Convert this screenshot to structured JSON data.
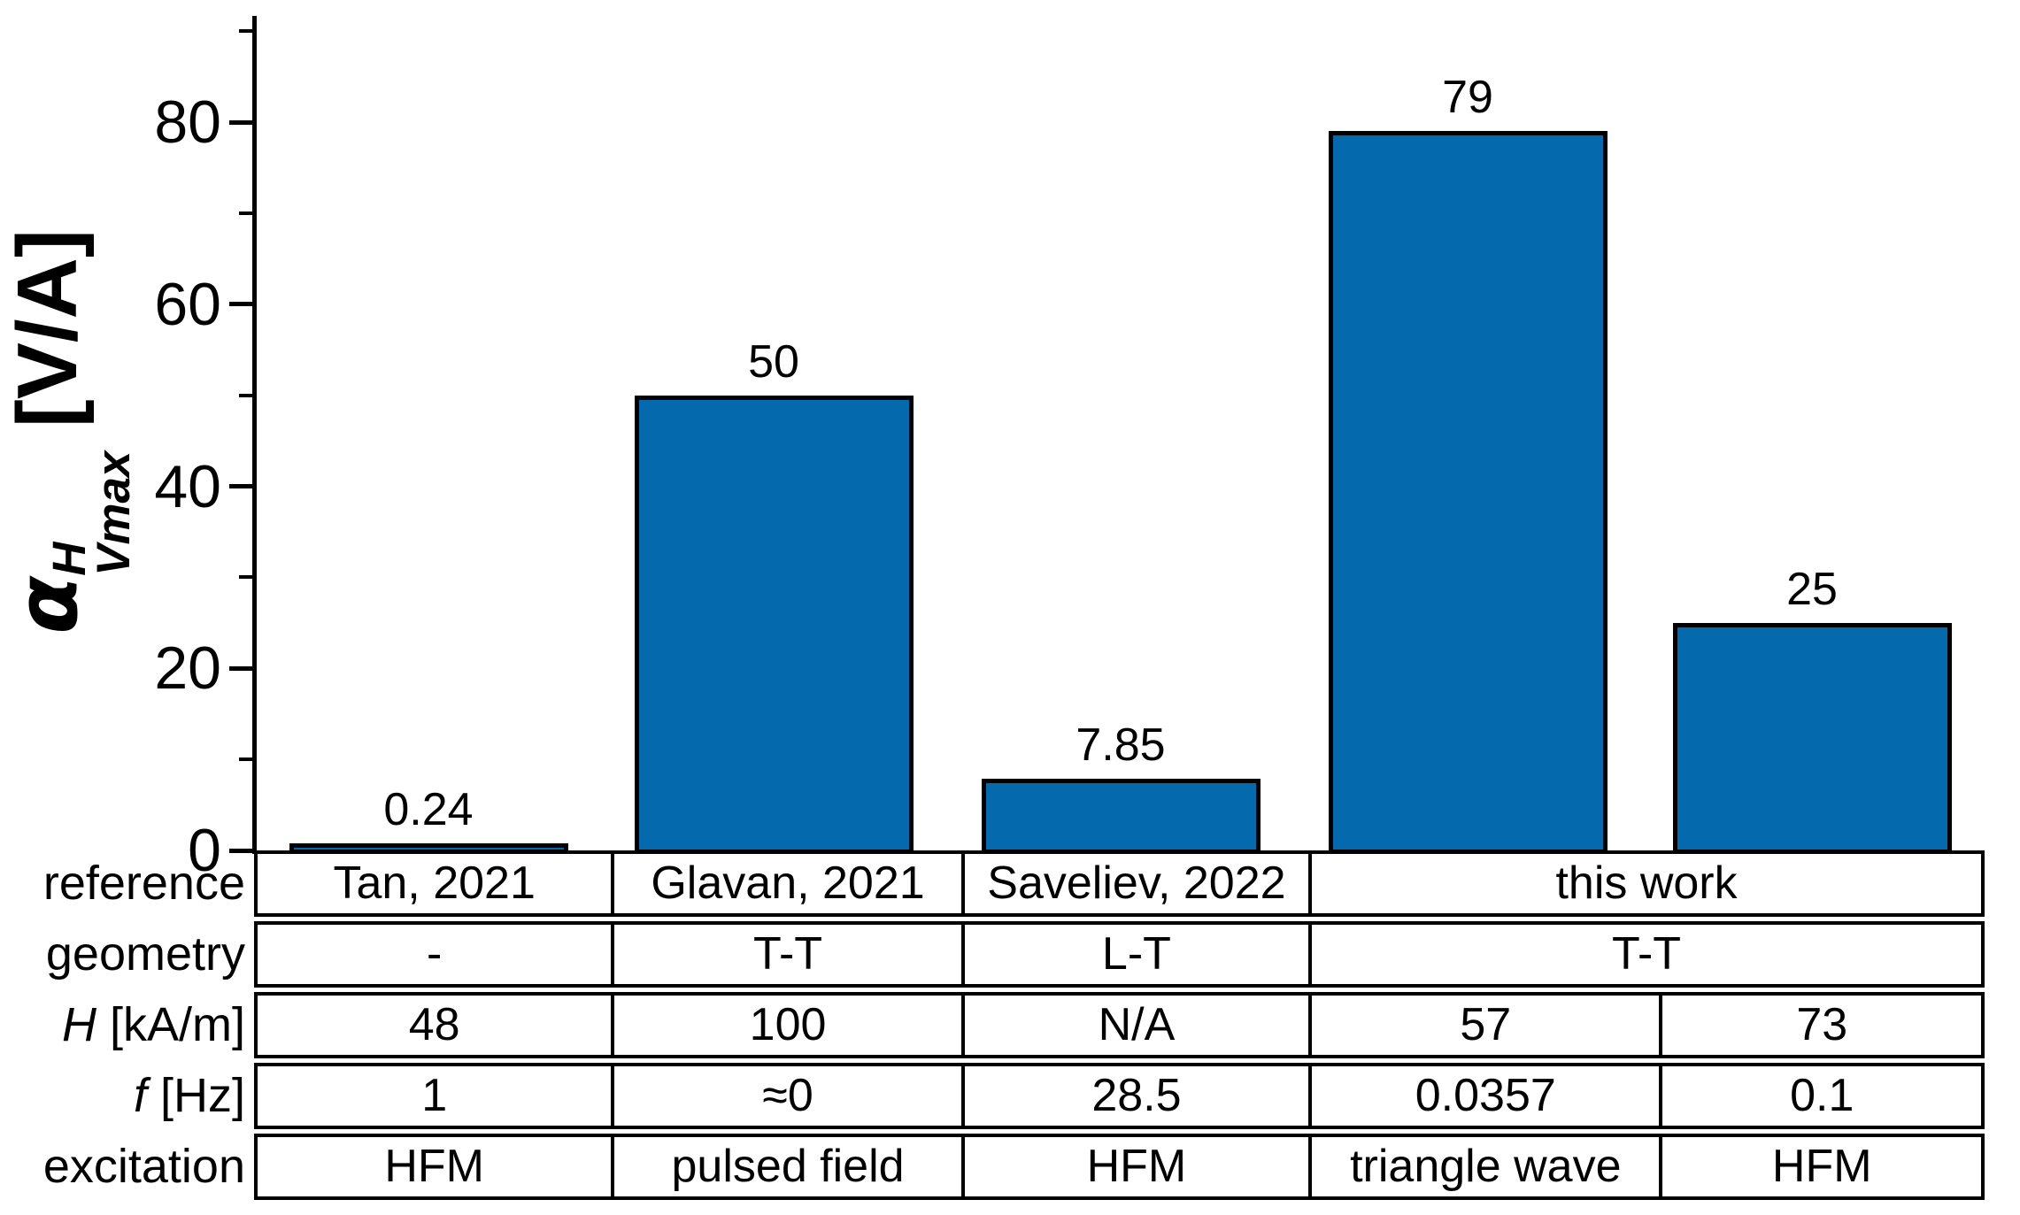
{
  "figure": {
    "background": "#ffffff",
    "axis_color": "#000000",
    "bar_color": "#0569ae",
    "bar_border_color": "#000000"
  },
  "chart_data": {
    "type": "bar",
    "title": "",
    "xlabel": "",
    "ylabel_text": "α^H_Vmax [V/A]",
    "ylabel": {
      "alpha": "α",
      "sup": "H",
      "sub": "Vmax",
      "units": " [V/A]"
    },
    "ylim": [
      0,
      91.5
    ],
    "yticks": [
      0,
      20,
      40,
      60,
      80
    ],
    "minor_yticks": [
      10,
      30,
      50,
      70,
      90
    ],
    "grid": false,
    "legend": "none",
    "categories": [
      "Tan, 2021",
      "Glavan, 2021",
      "Saveliev, 2022",
      "this work",
      "this work"
    ],
    "values": [
      0.24,
      50,
      7.85,
      79,
      25
    ],
    "bar_labels": [
      "0.24",
      "50",
      "7.85",
      "79",
      "25"
    ]
  },
  "table": {
    "row_headers": [
      {
        "italic": "",
        "text": "reference"
      },
      {
        "italic": "",
        "text": "geometry"
      },
      {
        "italic": "H",
        "text": " [kA/m]"
      },
      {
        "italic": "f",
        "text": " [Hz]"
      },
      {
        "italic": "",
        "text": "excitation"
      }
    ],
    "rows": [
      {
        "name": "reference",
        "cells": [
          {
            "text": "Tan, 2021",
            "span": 1
          },
          {
            "text": "Glavan, 2021",
            "span": 1
          },
          {
            "text": "Saveliev, 2022",
            "span": 1
          },
          {
            "text": "this work",
            "span": 2
          }
        ]
      },
      {
        "name": "geometry",
        "cells": [
          {
            "text": "-",
            "span": 1
          },
          {
            "text": "T-T",
            "span": 1
          },
          {
            "text": "L-T",
            "span": 1
          },
          {
            "text": "T-T",
            "span": 2
          }
        ]
      },
      {
        "name": "H-kA-m",
        "cells": [
          {
            "text": "48",
            "span": 1
          },
          {
            "text": "100",
            "span": 1
          },
          {
            "text": "N/A",
            "span": 1
          },
          {
            "text": "57",
            "span": 1
          },
          {
            "text": "73",
            "span": 1
          }
        ]
      },
      {
        "name": "f-Hz",
        "cells": [
          {
            "text": "1",
            "span": 1
          },
          {
            "text": "≈0",
            "span": 1
          },
          {
            "text": "28.5",
            "span": 1
          },
          {
            "text": "0.0357",
            "span": 1
          },
          {
            "text": "0.1",
            "span": 1
          }
        ]
      },
      {
        "name": "excitation",
        "cells": [
          {
            "text": "HFM",
            "span": 1
          },
          {
            "text": "pulsed field",
            "span": 1
          },
          {
            "text": "HFM",
            "span": 1
          },
          {
            "text": "triangle wave",
            "span": 1
          },
          {
            "text": "HFM",
            "span": 1
          }
        ]
      }
    ]
  }
}
